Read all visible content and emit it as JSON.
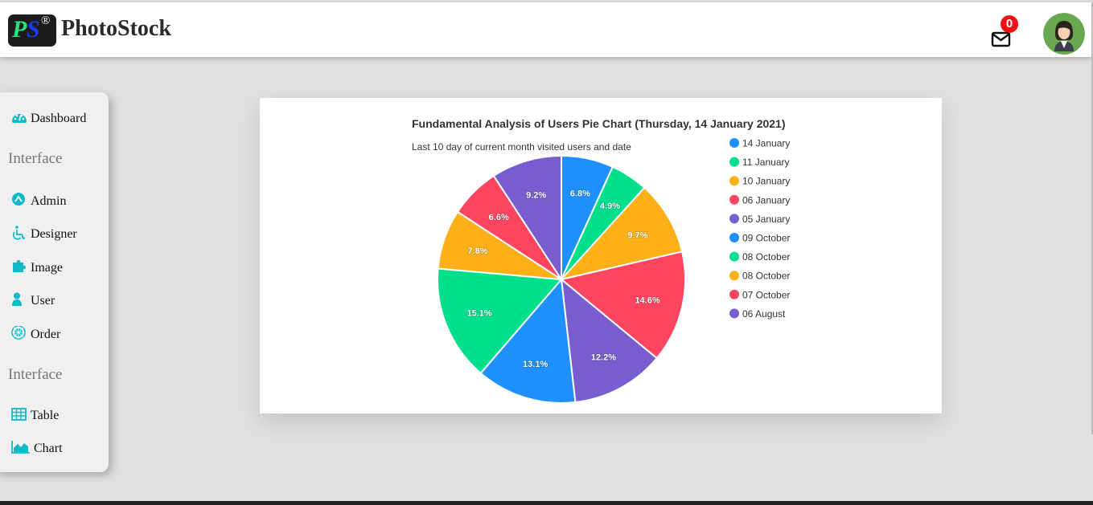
{
  "header": {
    "logo": {
      "p": "P",
      "s": "S",
      "registered": "®"
    },
    "brand": "PhotoStock",
    "notifications_count": "0"
  },
  "sidebar": {
    "items": [
      {
        "label": "Dashboard",
        "icon": "dashboard-icon"
      },
      {
        "section": "Interface"
      },
      {
        "label": "Admin",
        "icon": "admin-icon"
      },
      {
        "label": "Designer",
        "icon": "wheelchair-icon"
      },
      {
        "label": "Image",
        "icon": "puzzle-icon"
      },
      {
        "label": "User",
        "icon": "user-icon"
      },
      {
        "label": "Order",
        "icon": "order-icon"
      },
      {
        "section": "Interface"
      },
      {
        "label": "Table",
        "icon": "table-icon"
      },
      {
        "label": "Chart",
        "icon": "area-chart-icon"
      }
    ]
  },
  "colors": {
    "blue": "#1e90ff",
    "green": "#00e08c",
    "orange": "#feb019",
    "red": "#ff4560",
    "purple": "#775dd0",
    "icon_teal": "#10b9c8"
  },
  "chart_data": {
    "type": "pie",
    "title": "Fundamental Analysis of Users Pie Chart (Thursday, 14 January 2021)",
    "subtitle": "Last 10 day of current month visited users and date",
    "legend_position": "right",
    "categories": [
      "14 January",
      "11 January",
      "10 January",
      "06 January",
      "05 January",
      "09 October",
      "08 October",
      "08 October",
      "07 October",
      "06 August"
    ],
    "values": [
      6.8,
      4.9,
      9.7,
      14.6,
      12.2,
      13.1,
      15.1,
      7.8,
      6.6,
      9.2
    ],
    "labels": [
      "6.8%",
      "4.9%",
      "9.7%",
      "14.6%",
      "12.2%",
      "13.1%",
      "15.1%",
      "7.8%",
      "6.6%",
      "9.2%"
    ],
    "slice_colors": [
      "#1e90ff",
      "#00e08c",
      "#feb019",
      "#ff4560",
      "#775dd0",
      "#1e90ff",
      "#00e08c",
      "#feb019",
      "#ff4560",
      "#775dd0"
    ]
  }
}
